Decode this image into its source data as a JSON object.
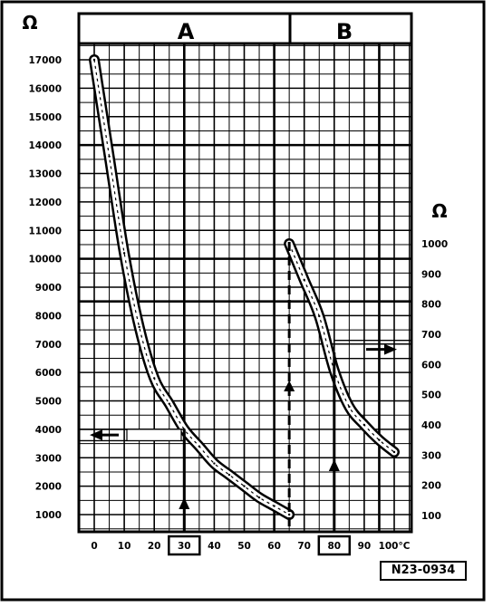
{
  "chart_data": {
    "type": "line",
    "title": "",
    "panels": [
      {
        "label": "A",
        "unit": "Ω",
        "range_label": "30"
      },
      {
        "label": "B",
        "unit": "Ω",
        "range_label": "80"
      }
    ],
    "x_axis": {
      "ticks": [
        "0",
        "10",
        "20",
        "30",
        "40",
        "50",
        "60",
        "70",
        "80",
        "90",
        "100°C"
      ],
      "values": [
        0,
        10,
        20,
        30,
        40,
        50,
        60,
        70,
        80,
        90,
        100
      ],
      "xlim": [
        -5,
        105
      ]
    },
    "y_left": {
      "unit": "Ω",
      "ticks": [
        "1000",
        "2000",
        "3000",
        "4000",
        "5000",
        "6000",
        "7000",
        "8000",
        "9000",
        "10000",
        "11000",
        "12000",
        "13000",
        "14000",
        "15000",
        "16000",
        "17000"
      ],
      "values": [
        1000,
        2000,
        3000,
        4000,
        5000,
        6000,
        7000,
        8000,
        9000,
        10000,
        11000,
        12000,
        13000,
        14000,
        15000,
        16000,
        17000
      ],
      "ylim": [
        0,
        17500
      ]
    },
    "y_right": {
      "unit": "Ω",
      "ticks": [
        "100",
        "200",
        "300",
        "400",
        "500",
        "600",
        "700",
        "800",
        "900",
        "1000"
      ],
      "values": [
        100,
        200,
        300,
        400,
        500,
        600,
        700,
        800,
        900,
        1000
      ]
    },
    "series": [
      {
        "panel": "A",
        "x": [
          0,
          5,
          10,
          15,
          20,
          25,
          30,
          35,
          40,
          45,
          50,
          55,
          60,
          65
        ],
        "y": [
          17000,
          13600,
          10200,
          7600,
          5800,
          4900,
          4000,
          3400,
          2800,
          2400,
          2000,
          1600,
          1300,
          1000
        ]
      },
      {
        "panel": "B",
        "x": [
          65,
          70,
          75,
          80,
          85,
          90,
          95,
          100
        ],
        "y": [
          1000,
          880,
          760,
          580,
          460,
          400,
          350,
          310
        ]
      }
    ],
    "annotations": {
      "reference_code": "N23-0934"
    }
  },
  "colors": {
    "ink": "#000000",
    "background": "#ffffff",
    "curve_fill": "#ffffff"
  }
}
